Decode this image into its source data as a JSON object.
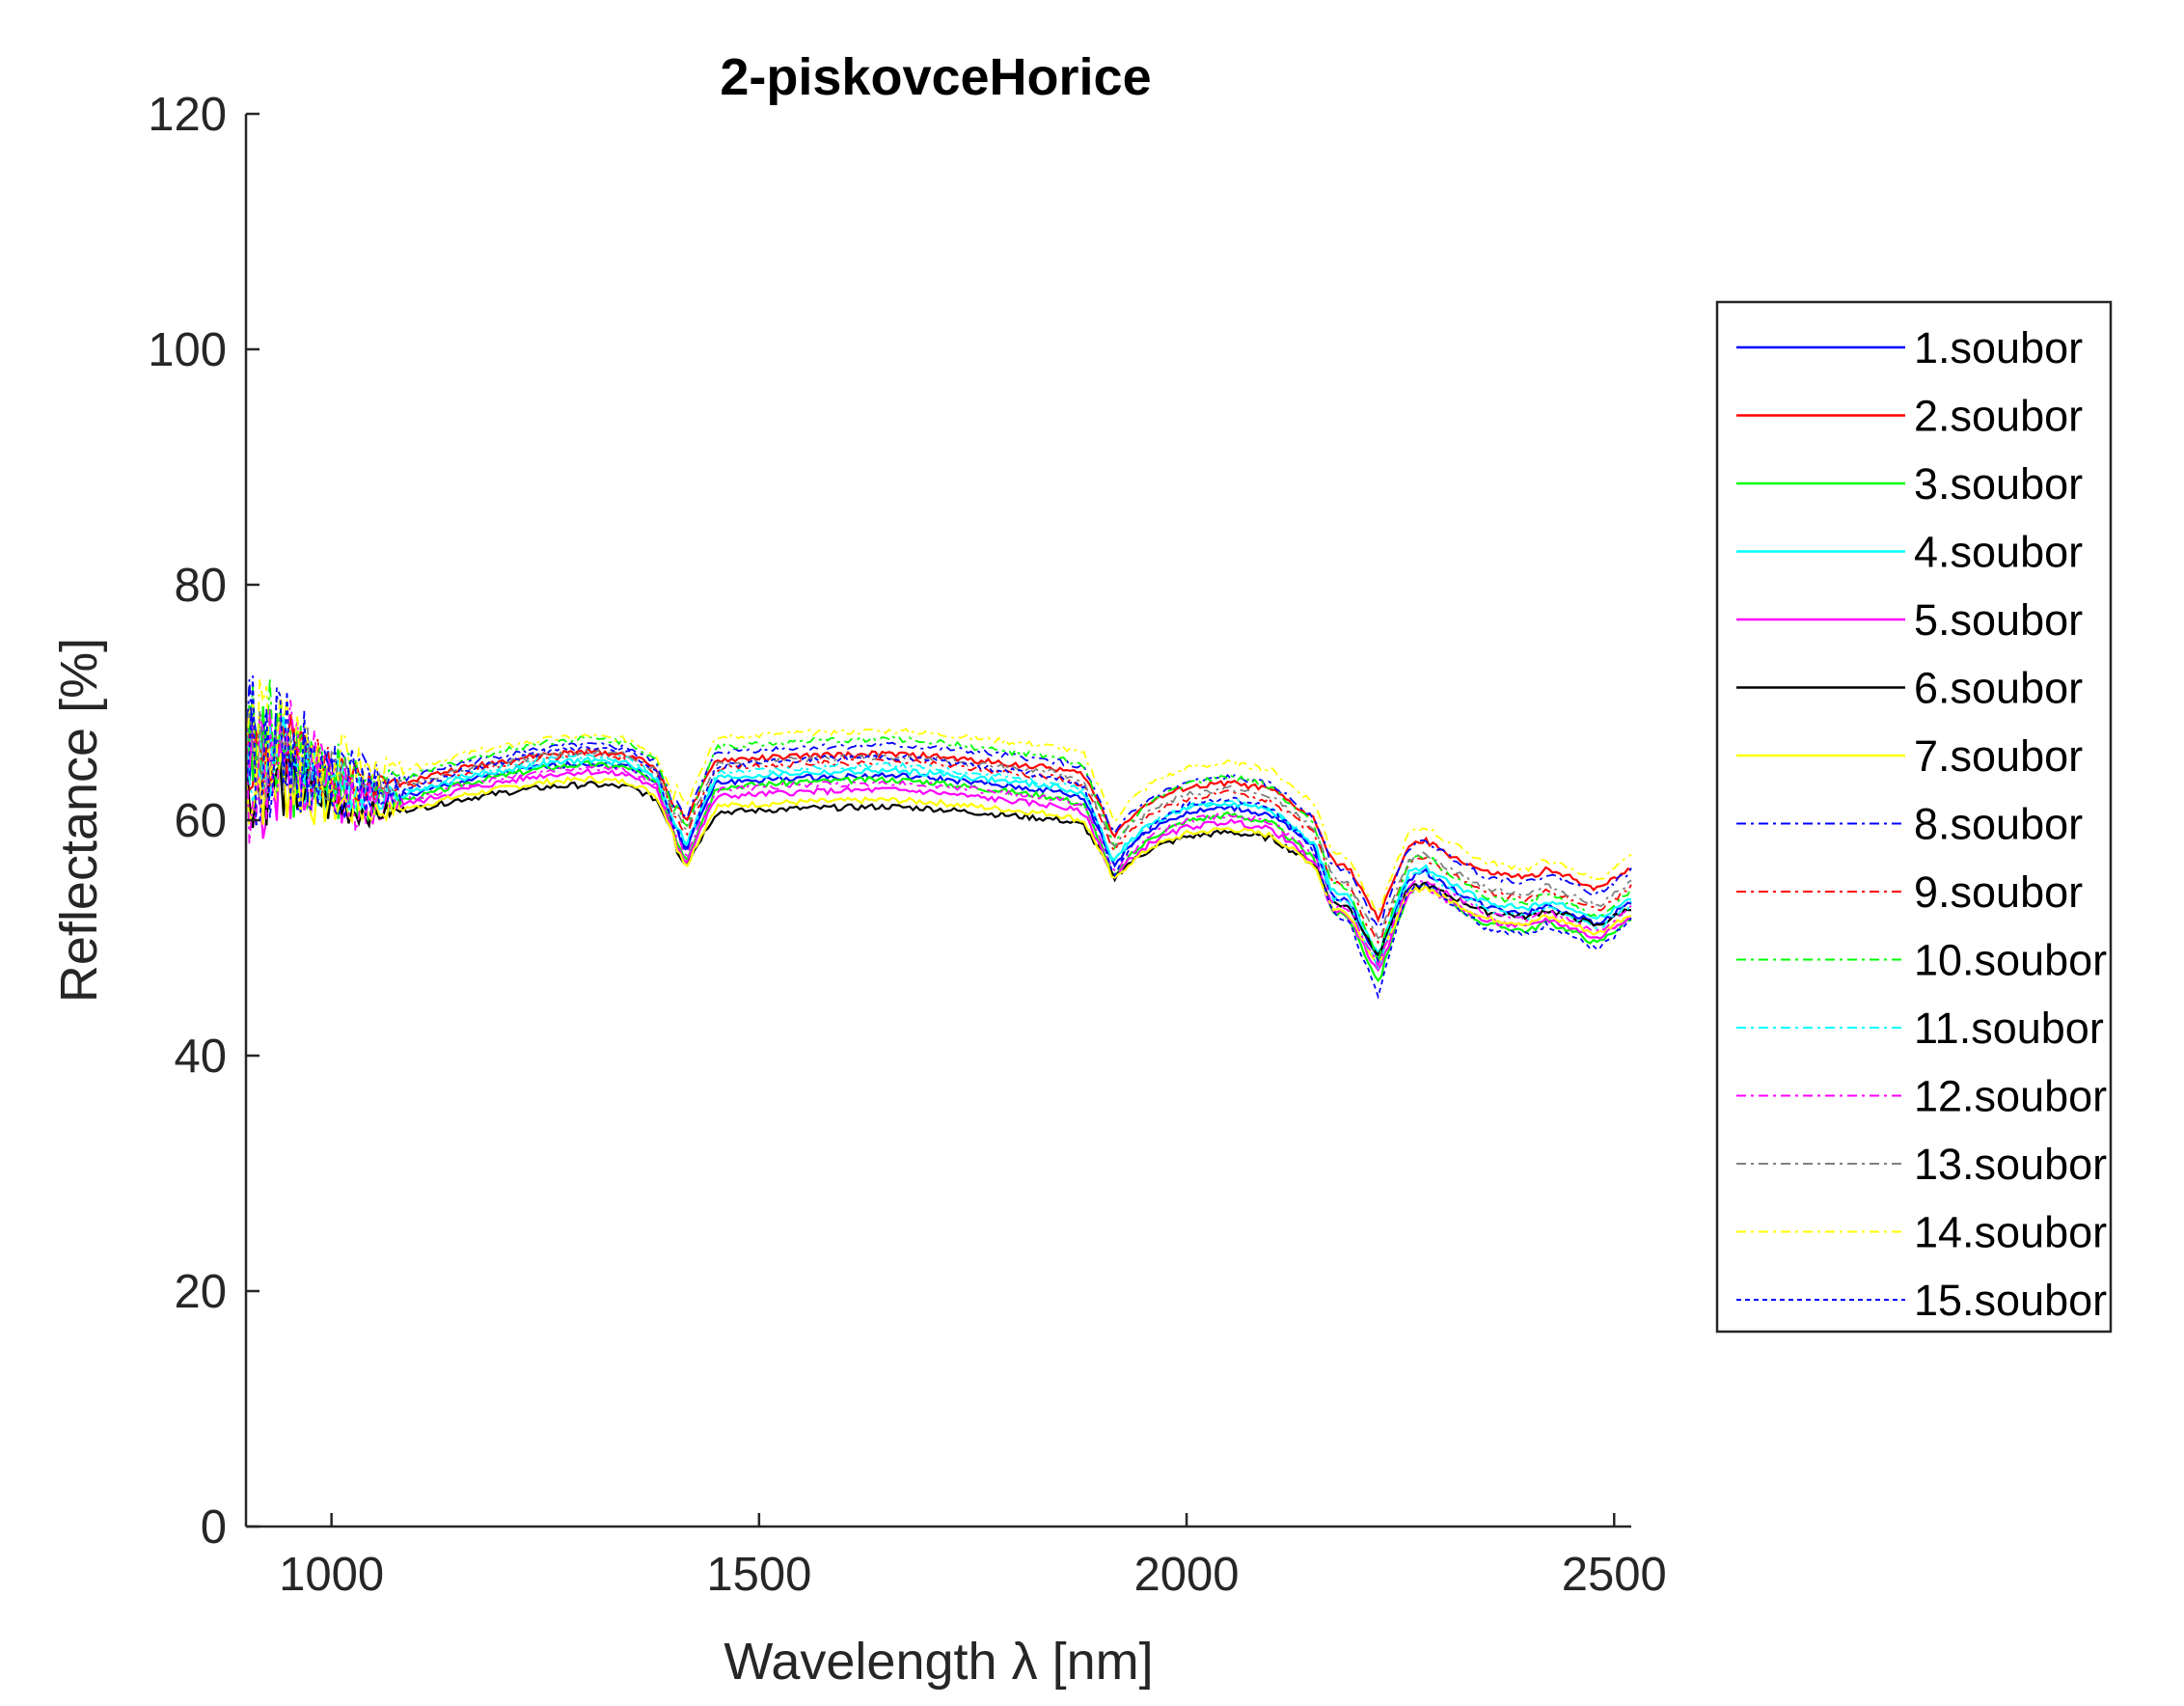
{
  "chart_data": {
    "type": "line",
    "title": "2-piskovceHorice",
    "xlabel": "Wavelength λ [nm]",
    "ylabel": "Reflectance [%]",
    "xlim": [
      900,
      2520
    ],
    "ylim": [
      0,
      120
    ],
    "xticks": [
      1000,
      1500,
      2000,
      2500
    ],
    "yticks": [
      0,
      20,
      40,
      60,
      80,
      100,
      120
    ],
    "legend_position": "right-outside",
    "base_profile": {
      "x": [
        900,
        950,
        1000,
        1050,
        1100,
        1150,
        1200,
        1250,
        1300,
        1350,
        1380,
        1400,
        1415,
        1430,
        1450,
        1500,
        1550,
        1600,
        1650,
        1700,
        1750,
        1800,
        1850,
        1880,
        1900,
        1915,
        1930,
        1960,
        2000,
        2050,
        2100,
        2150,
        2170,
        2190,
        2210,
        2225,
        2240,
        2260,
        2280,
        2300,
        2350,
        2400,
        2420,
        2450,
        2480,
        2500,
        2520
      ],
      "y": [
        65,
        65,
        63,
        62,
        62.5,
        63.5,
        64.2,
        64.8,
        65.1,
        64.8,
        63.5,
        60,
        58,
        60.5,
        63.6,
        63.8,
        64.0,
        64.1,
        64.2,
        64.0,
        63.6,
        63.2,
        62.8,
        62.2,
        59.2,
        56.5,
        58,
        59.8,
        61.0,
        61.5,
        60.8,
        58,
        54,
        53.5,
        50.5,
        48.5,
        52,
        55.5,
        56,
        55,
        53,
        52.5,
        53.2,
        52.5,
        51.5,
        52.5,
        53.5
      ]
    },
    "series": [
      {
        "name": "1.soubor",
        "color": "#0000ff",
        "style": "solid",
        "offset": -0.4,
        "dip_scale": 1.0,
        "noise": 5.0
      },
      {
        "name": "2.soubor",
        "color": "#ff0000",
        "style": "solid",
        "offset": 1.5,
        "dip_scale": 0.9,
        "noise": 4.5
      },
      {
        "name": "3.soubor",
        "color": "#00ff00",
        "style": "solid",
        "offset": -0.8,
        "dip_scale": 1.1,
        "noise": 6.0
      },
      {
        "name": "4.soubor",
        "color": "#00ffff",
        "style": "solid",
        "offset": 0.0,
        "dip_scale": 1.0,
        "noise": 5.5
      },
      {
        "name": "5.soubor",
        "color": "#ff00ff",
        "style": "solid",
        "offset": -1.6,
        "dip_scale": 1.0,
        "noise": 6.5
      },
      {
        "name": "6.soubor",
        "color": "#000000",
        "style": "solid",
        "offset": -2.9,
        "dip_scale": 0.8,
        "noise": 4.0
      },
      {
        "name": "7.soubor",
        "color": "#ffff00",
        "style": "solid",
        "offset": -2.4,
        "dip_scale": 0.9,
        "noise": 5.0
      },
      {
        "name": "8.soubor",
        "color": "#0000ff",
        "style": "dashdot",
        "offset": 2.2,
        "dip_scale": 1.0,
        "noise": 7.0
      },
      {
        "name": "9.soubor",
        "color": "#ff0000",
        "style": "dashdot",
        "offset": 0.8,
        "dip_scale": 1.0,
        "noise": 5.0
      },
      {
        "name": "10.soubor",
        "color": "#00ff00",
        "style": "dashdot",
        "offset": 2.6,
        "dip_scale": 1.2,
        "noise": 6.0
      },
      {
        "name": "11.soubor",
        "color": "#00ffff",
        "style": "dashdot",
        "offset": 0.4,
        "dip_scale": 1.1,
        "noise": 5.0
      },
      {
        "name": "12.soubor",
        "color": "#ff00ff",
        "style": "dashdot",
        "offset": -1.0,
        "dip_scale": 1.0,
        "noise": 8.0
      },
      {
        "name": "13.soubor",
        "color": "#808080",
        "style": "dashdot",
        "offset": 1.2,
        "dip_scale": 1.0,
        "noise": 5.0
      },
      {
        "name": "14.soubor",
        "color": "#ffff00",
        "style": "dashdot",
        "offset": 3.4,
        "dip_scale": 1.0,
        "noise": 6.0
      },
      {
        "name": "15.soubor",
        "color": "#0000ff",
        "style": "dotted",
        "offset": 1.0,
        "dip_scale": 1.3,
        "noise": 7.0
      }
    ]
  }
}
